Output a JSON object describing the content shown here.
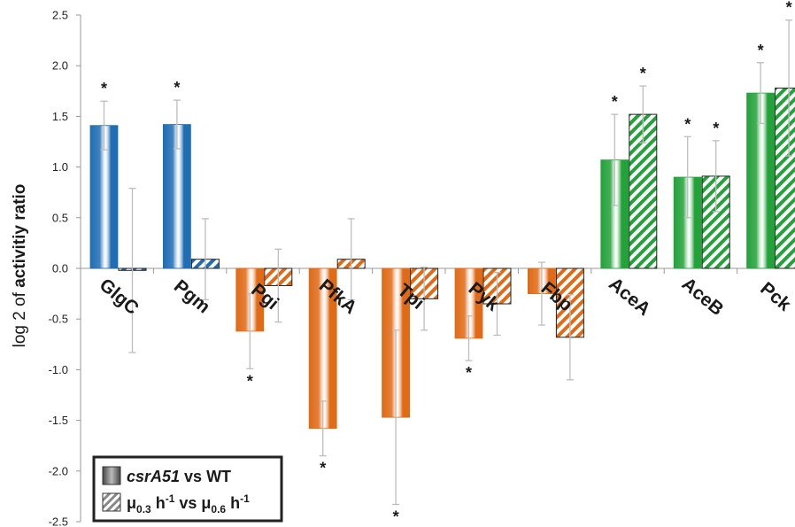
{
  "chart_data": {
    "type": "bar",
    "ylabel_prefix": "log 2 of ",
    "ylabel_bold": "activitiy ratio",
    "ylim": [
      -2.5,
      2.5
    ],
    "yticks": [
      "2.5",
      "2.0",
      "1.5",
      "1.0",
      "0.5",
      "0.0",
      "-0.5",
      "-1.0",
      "-1.5",
      "-2.0",
      "-2.5"
    ],
    "categories": [
      "GlgC",
      "Pgm",
      "Pgi",
      "PfkA",
      "Tpi",
      "Pyk",
      "Fbp",
      "AceA",
      "AceB",
      "Pck"
    ],
    "colors": {
      "glycogen": "#1f6db5",
      "glycolysis": "#e06a16",
      "glyoxylate": "#23a23a"
    },
    "category_groups": [
      "glycogen",
      "glycogen",
      "glycolysis",
      "glycolysis",
      "glycolysis",
      "glycolysis",
      "glycolysis",
      "glyoxylate",
      "glyoxylate",
      "glyoxylate"
    ],
    "series": [
      {
        "values": [
          1.41,
          1.42,
          -0.62,
          -1.58,
          -1.47,
          -0.69,
          -0.25,
          1.07,
          0.9,
          1.73
        ],
        "error": [
          0.24,
          0.24,
          0.37,
          0.27,
          0.86,
          0.22,
          0.31,
          0.45,
          0.4,
          0.3
        ],
        "significant": [
          true,
          true,
          true,
          true,
          true,
          true,
          false,
          true,
          true,
          true
        ]
      },
      {
        "values": [
          -0.02,
          0.09,
          -0.17,
          0.09,
          -0.3,
          -0.35,
          -0.68,
          1.52,
          0.91,
          1.78
        ],
        "error": [
          0.81,
          0.4,
          0.36,
          0.4,
          0.31,
          0.31,
          0.42,
          0.28,
          0.35,
          0.67
        ],
        "significant": [
          false,
          false,
          false,
          false,
          false,
          false,
          false,
          true,
          true,
          true
        ]
      }
    ],
    "significance_marker": "*",
    "legend": {
      "position": "bottom-left",
      "entry1_italic": "csrA51",
      "entry1_rest": " vs WT",
      "entry2": {
        "mu": "μ",
        "sub1": "0.3",
        "mid1": " h",
        "sup1": "-1",
        "mid2": " vs ",
        "sub2": "0.6",
        "mid3": " h",
        "sup2": "-1"
      }
    },
    "grid": false
  }
}
